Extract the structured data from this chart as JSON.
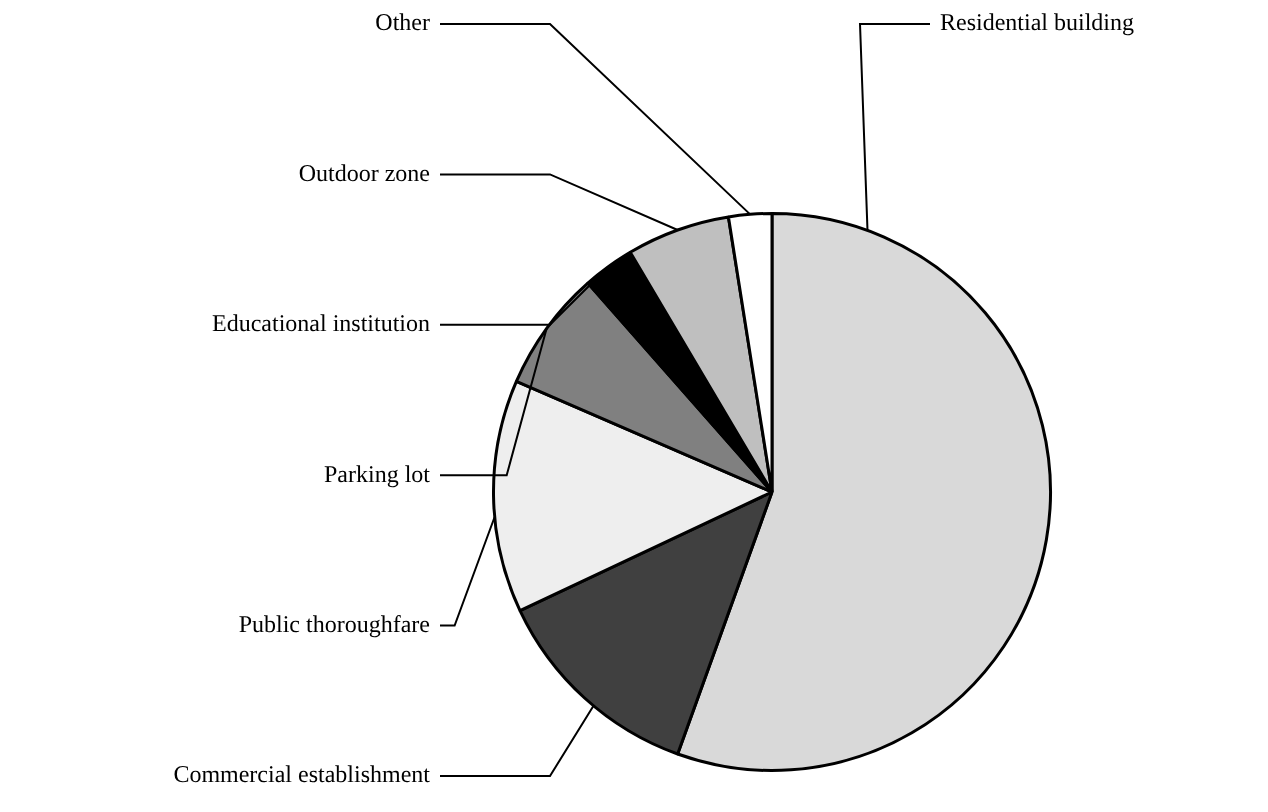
{
  "chart_data": {
    "type": "pie",
    "categories": [
      "Residential building",
      "Commercial establishment",
      "Public thoroughfare",
      "Parking lot",
      "Educational institution",
      "Outdoor zone",
      "Other"
    ],
    "values": [
      55.5,
      12.5,
      13.5,
      7,
      3,
      6,
      2.5
    ],
    "colors": [
      "#d9d9d9",
      "#404040",
      "#eeeeee",
      "#808080",
      "#000000",
      "#bfbfbf",
      "#ffffff"
    ],
    "legend": false
  }
}
